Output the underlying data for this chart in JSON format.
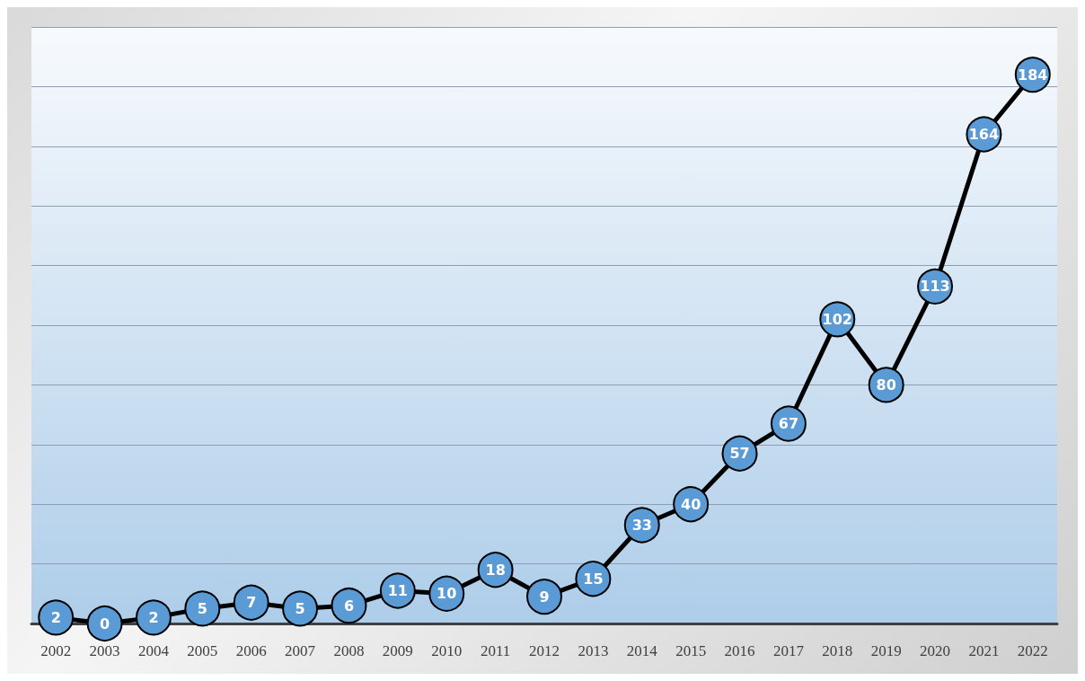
{
  "chart_data": {
    "type": "line",
    "categories": [
      "2002",
      "2003",
      "2004",
      "2005",
      "2006",
      "2007",
      "2008",
      "2009",
      "2010",
      "2011",
      "2012",
      "2013",
      "2014",
      "2015",
      "2016",
      "2017",
      "2018",
      "2019",
      "2020",
      "2021",
      "2022"
    ],
    "series": [
      {
        "color": "#5b9bd5",
        "values": [
          2,
          0,
          2,
          5,
          7,
          5,
          6,
          11,
          10,
          18,
          9,
          15,
          33,
          40,
          57,
          67,
          102,
          80,
          113,
          164,
          184
        ]
      }
    ],
    "ylim": [
      0,
      200
    ],
    "yticks": [
      {
        "value": 0,
        "label": null
      },
      {
        "value": 20,
        "label": null
      },
      {
        "value": 40,
        "label": null
      },
      {
        "value": 60,
        "label": null
      },
      {
        "value": 80,
        "label": null
      },
      {
        "value": 100,
        "label": null
      },
      {
        "value": 120,
        "label": null
      },
      {
        "value": 140,
        "label": null
      },
      {
        "value": 160,
        "label": null
      },
      {
        "value": 180,
        "label": null
      },
      {
        "value": 200,
        "label": null
      }
    ],
    "tick_labels": "x",
    "grid": "y",
    "marker": "circle",
    "line_style": "solid",
    "data_labels": true
  }
}
